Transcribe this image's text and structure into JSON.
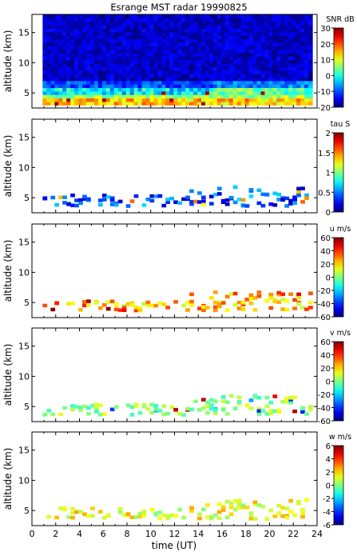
{
  "title": "Esrange MST radar 19990825",
  "x_axis": {
    "label": "time (UT)",
    "range": [
      0,
      24
    ],
    "ticks": [
      0,
      2,
      4,
      6,
      8,
      10,
      12,
      14,
      16,
      18,
      20,
      22,
      24
    ]
  },
  "chart_data": [
    {
      "type": "heatmap",
      "name": "snr",
      "ylabel": "altitude (km)",
      "ylim": [
        2.5,
        18
      ],
      "yticks": [
        5,
        10,
        15
      ],
      "colorbar": {
        "label": "SNR dB",
        "range": [
          -20,
          30
        ],
        "ticks": [
          -20,
          -10,
          0,
          10,
          20,
          30
        ]
      },
      "coverage": "full",
      "time_range": [
        0.9,
        23.6
      ],
      "alt_range": [
        3.0,
        18.0
      ],
      "xlim": [
        0,
        24
      ]
    },
    {
      "type": "heatmap",
      "name": "tau",
      "ylabel": "altitude (km)",
      "ylim": [
        2.5,
        18
      ],
      "yticks": [
        5,
        10,
        15
      ],
      "colorbar": {
        "label": "tau S",
        "range": [
          0,
          2
        ],
        "ticks": [
          0,
          0.5,
          1,
          1.5,
          2
        ]
      },
      "coverage": "sparse",
      "xlim": [
        0,
        24
      ]
    },
    {
      "type": "heatmap",
      "name": "u",
      "ylabel": "altitude (km)",
      "ylim": [
        2.5,
        18
      ],
      "yticks": [
        5,
        10,
        15
      ],
      "colorbar": {
        "label": "u m/s",
        "range": [
          -60,
          60
        ],
        "ticks": [
          -60,
          -40,
          -20,
          0,
          20,
          40,
          60
        ]
      },
      "coverage": "sparse",
      "xlim": [
        0,
        24
      ]
    },
    {
      "type": "heatmap",
      "name": "v",
      "ylabel": "altitude (km)",
      "ylim": [
        2.5,
        18
      ],
      "yticks": [
        5,
        10,
        15
      ],
      "colorbar": {
        "label": "v m/s",
        "range": [
          -60,
          60
        ],
        "ticks": [
          -60,
          -40,
          -20,
          0,
          20,
          40,
          60
        ]
      },
      "coverage": "sparse",
      "xlim": [
        0,
        24
      ]
    },
    {
      "type": "heatmap",
      "name": "w",
      "ylabel": "altitude (km)",
      "ylim": [
        2.5,
        18
      ],
      "yticks": [
        5,
        10,
        15
      ],
      "colorbar": {
        "label": "w m/s",
        "range": [
          -6,
          6
        ],
        "ticks": [
          -6,
          -4,
          -2,
          0,
          2,
          4,
          6
        ]
      },
      "coverage": "sparse",
      "xlim": [
        0,
        24
      ]
    }
  ]
}
